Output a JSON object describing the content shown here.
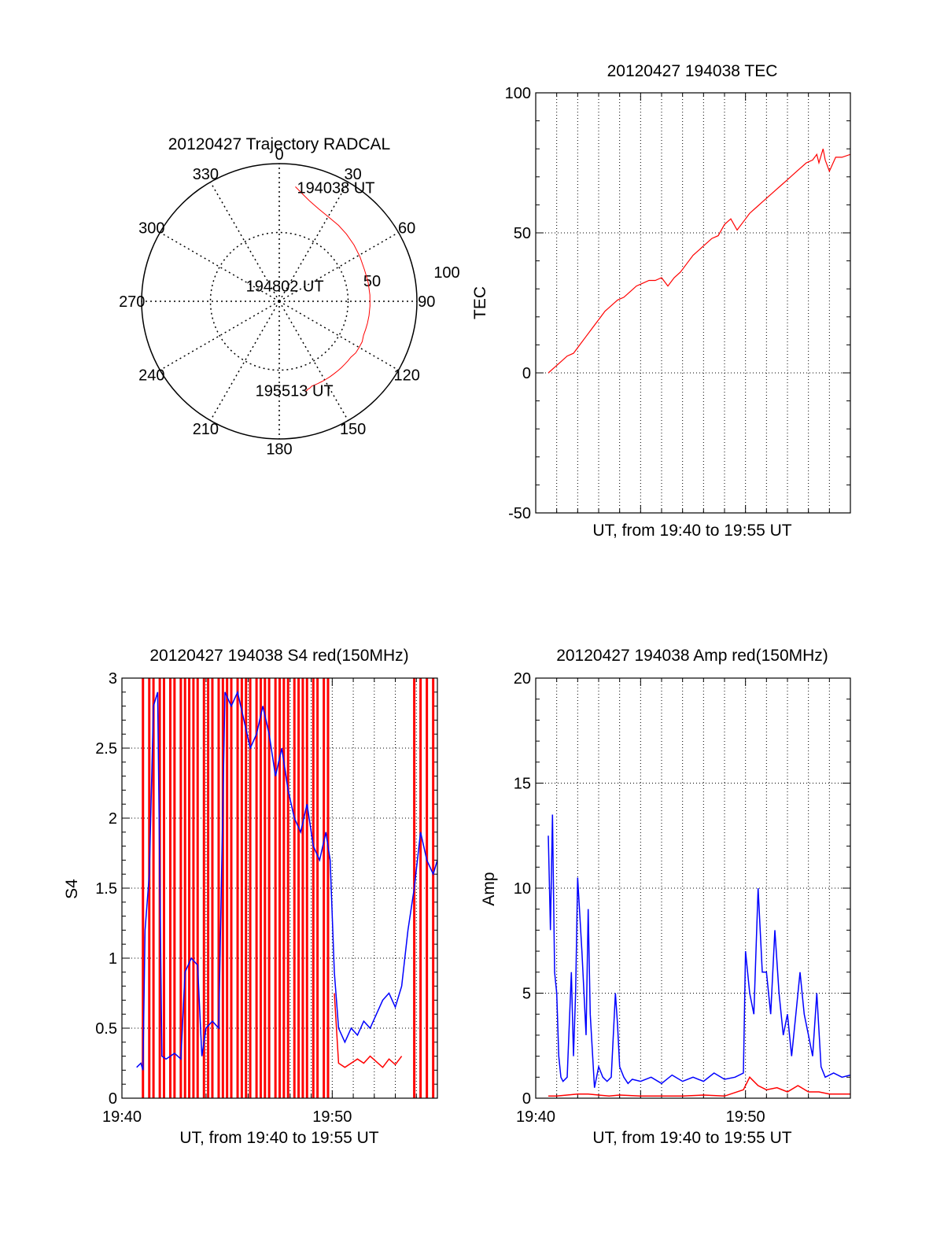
{
  "colors": {
    "red": "#ff0000",
    "blue": "#0000ff",
    "axis": "#000000",
    "grid": "#000000"
  },
  "chart_data": [
    {
      "id": "trajectory",
      "type": "polar",
      "title": "20120427 Trajectory RADCAL",
      "angle_labels": [
        "0",
        "30",
        "60",
        "90",
        "120",
        "150",
        "180",
        "210",
        "240",
        "270",
        "300",
        "330"
      ],
      "radial_labels": [
        "50",
        "100"
      ],
      "rmax": 100,
      "series": [
        {
          "color": "red",
          "points": [
            [
              8,
              84
            ],
            [
              12,
              80
            ],
            [
              17,
              76
            ],
            [
              23,
              73
            ],
            [
              30,
              71
            ],
            [
              38,
              70
            ],
            [
              45,
              69
            ],
            [
              53,
              68
            ],
            [
              61,
              67
            ],
            [
              70,
              66
            ],
            [
              78,
              66
            ],
            [
              86,
              66
            ],
            [
              93,
              66
            ],
            [
              99,
              66
            ],
            [
              104,
              66
            ],
            [
              108,
              66
            ],
            [
              112,
              66
            ],
            [
              116,
              67
            ],
            [
              120,
              67
            ],
            [
              124,
              67
            ],
            [
              128,
              66
            ],
            [
              131,
              66
            ],
            [
              134,
              66
            ],
            [
              137,
              66
            ],
            [
              140,
              66
            ],
            [
              143,
              66
            ],
            [
              146,
              66
            ],
            [
              149,
              66
            ],
            [
              152,
              66
            ],
            [
              155,
              66
            ],
            [
              157,
              66
            ],
            [
              159,
              66
            ],
            [
              161,
              67
            ],
            [
              162,
              67
            ],
            [
              163,
              68
            ],
            [
              164,
              68
            ]
          ]
        }
      ],
      "annotations": [
        {
          "text": "194038 UT",
          "az": 8,
          "r": 84
        },
        {
          "text": "194802 UT",
          "az": 295,
          "r": 28
        },
        {
          "text": "195513 UT",
          "az": 196,
          "r": 67
        }
      ]
    },
    {
      "id": "tec",
      "type": "line",
      "title": "20120427 194038 TEC",
      "xlabel": "UT, from 19:40 to 19:55 UT",
      "ylabel": "TEC",
      "xlim": [
        0,
        15
      ],
      "ylim": [
        -50,
        100
      ],
      "yticks": [
        -50,
        0,
        50,
        100
      ],
      "xticks": [],
      "series": [
        {
          "color": "red",
          "x": [
            0.6,
            0.9,
            1.2,
            1.5,
            1.8,
            2.1,
            2.4,
            2.7,
            3.0,
            3.3,
            3.6,
            3.9,
            4.2,
            4.5,
            4.8,
            5.1,
            5.4,
            5.7,
            6.0,
            6.3,
            6.6,
            6.9,
            7.2,
            7.5,
            7.8,
            8.1,
            8.4,
            8.7,
            9.0,
            9.3,
            9.6,
            9.9,
            10.2,
            10.5,
            10.8,
            11.1,
            11.4,
            11.7,
            12.0,
            12.3,
            12.6,
            12.9,
            13.2,
            13.4,
            13.5,
            13.7,
            13.8,
            14.0,
            14.3,
            14.6,
            15.0
          ],
          "y": [
            0,
            2,
            4,
            6,
            7,
            10,
            13,
            16,
            19,
            22,
            24,
            26,
            27,
            29,
            31,
            32,
            33,
            33,
            34,
            31,
            34,
            36,
            39,
            42,
            44,
            46,
            48,
            49,
            53,
            55,
            51,
            54,
            57,
            59,
            61,
            63,
            65,
            67,
            69,
            71,
            73,
            75,
            76,
            78,
            75,
            80,
            76,
            72,
            77,
            77,
            78
          ]
        }
      ]
    },
    {
      "id": "s4",
      "type": "line",
      "title": "20120427 194038 S4 red(150MHz)",
      "xlabel": "UT, from 19:40 to 19:55 UT",
      "ylabel": "S4",
      "xlim": [
        0,
        15
      ],
      "ylim": [
        0,
        3
      ],
      "yticks": [
        0,
        0.5,
        1,
        1.5,
        2,
        2.5,
        3
      ],
      "xticks": [
        {
          "value": 0,
          "label": "19:40"
        },
        {
          "value": 10,
          "label": "19:50"
        }
      ],
      "spike_x": [
        1.0,
        1.3,
        1.5,
        1.8,
        2.0,
        2.3,
        2.5,
        2.8,
        3.0,
        3.2,
        3.4,
        3.6,
        3.9,
        4.1,
        4.3,
        4.6,
        4.8,
        5.0,
        5.2,
        5.5,
        5.7,
        5.9,
        6.1,
        6.4,
        6.6,
        6.8,
        7.0,
        7.3,
        7.5,
        7.7,
        7.9,
        8.2,
        8.4,
        8.6,
        8.8,
        9.1,
        9.3,
        9.6,
        9.8,
        13.9,
        14.2,
        14.5,
        14.8
      ],
      "series": [
        {
          "color": "blue",
          "x": [
            0.7,
            0.9,
            1.0,
            1.1,
            1.3,
            1.5,
            1.7,
            1.9,
            2.1,
            2.3,
            2.5,
            2.8,
            3.0,
            3.3,
            3.6,
            3.8,
            4.0,
            4.3,
            4.6,
            4.9,
            5.2,
            5.5,
            5.8,
            6.1,
            6.4,
            6.7,
            7.0,
            7.3,
            7.6,
            7.9,
            8.2,
            8.5,
            8.8,
            9.1,
            9.4,
            9.7,
            9.9,
            10.1,
            10.3,
            10.6,
            10.9,
            11.2,
            11.5,
            11.8,
            12.1,
            12.4,
            12.7,
            13.0,
            13.3,
            13.6,
            13.9,
            14.2,
            14.5,
            14.8,
            15.0
          ],
          "y": [
            0.22,
            0.25,
            0.2,
            1.2,
            1.6,
            2.8,
            2.9,
            0.3,
            0.28,
            0.3,
            0.32,
            0.28,
            0.9,
            1.0,
            0.95,
            0.3,
            0.5,
            0.55,
            0.5,
            2.9,
            2.8,
            2.9,
            2.7,
            2.5,
            2.6,
            2.8,
            2.6,
            2.3,
            2.5,
            2.2,
            2.0,
            1.9,
            2.1,
            1.8,
            1.7,
            1.9,
            1.7,
            0.9,
            0.5,
            0.4,
            0.5,
            0.45,
            0.55,
            0.5,
            0.6,
            0.7,
            0.75,
            0.65,
            0.8,
            1.2,
            1.5,
            1.9,
            1.7,
            1.6,
            1.7
          ]
        },
        {
          "color": "red",
          "x": [
            10.1,
            10.3,
            10.6,
            10.9,
            11.2,
            11.5,
            11.8,
            12.1,
            12.4,
            12.7,
            13.0,
            13.3
          ],
          "y": [
            0.75,
            0.25,
            0.22,
            0.25,
            0.28,
            0.25,
            0.3,
            0.26,
            0.22,
            0.28,
            0.24,
            0.3
          ]
        }
      ]
    },
    {
      "id": "amp",
      "type": "line",
      "title": "20120427 194038 Amp red(150MHz)",
      "xlabel": "UT, from 19:40 to 19:55 UT",
      "ylabel": "Amp",
      "xlim": [
        0,
        15
      ],
      "ylim": [
        0,
        20
      ],
      "yticks": [
        0,
        5,
        10,
        15,
        20
      ],
      "xticks": [
        {
          "value": 0,
          "label": "19:40"
        },
        {
          "value": 10,
          "label": "19:50"
        }
      ],
      "series": [
        {
          "color": "blue",
          "x": [
            0.6,
            0.7,
            0.8,
            0.9,
            1.0,
            1.1,
            1.2,
            1.3,
            1.5,
            1.7,
            1.8,
            1.9,
            2.0,
            2.2,
            2.4,
            2.5,
            2.6,
            2.8,
            3.0,
            3.2,
            3.4,
            3.6,
            3.8,
            3.9,
            4.0,
            4.2,
            4.4,
            4.6,
            5.0,
            5.5,
            6.0,
            6.5,
            7.0,
            7.5,
            8.0,
            8.5,
            9.0,
            9.5,
            9.9,
            10.0,
            10.2,
            10.4,
            10.6,
            10.8,
            11.0,
            11.2,
            11.4,
            11.6,
            11.8,
            12.0,
            12.2,
            12.4,
            12.6,
            12.8,
            13.0,
            13.2,
            13.4,
            13.6,
            13.8,
            14.2,
            14.6,
            15.0
          ],
          "y": [
            12.5,
            8,
            13.5,
            6,
            5,
            2,
            1,
            0.8,
            1,
            6,
            2,
            5,
            10.5,
            7,
            3,
            9,
            4,
            0.5,
            1.5,
            1.0,
            0.8,
            1.0,
            5,
            3.5,
            1.5,
            1.0,
            0.7,
            0.9,
            0.8,
            1.0,
            0.7,
            1.1,
            0.8,
            1.0,
            0.8,
            1.2,
            0.9,
            1.0,
            1.2,
            7,
            5,
            4,
            10,
            6,
            6,
            4,
            8,
            5,
            3,
            4,
            2,
            4,
            6,
            4,
            3,
            2,
            5,
            1.5,
            1.0,
            1.2,
            1.0,
            1.1
          ]
        },
        {
          "color": "red",
          "x": [
            0.6,
            1.0,
            1.5,
            2.0,
            2.5,
            3.0,
            3.5,
            4.0,
            5.0,
            6.0,
            7.0,
            8.0,
            9.0,
            9.9,
            10.2,
            10.6,
            11.0,
            11.5,
            12.0,
            12.5,
            13.0,
            13.5,
            14.0,
            15.0
          ],
          "y": [
            0.1,
            0.1,
            0.15,
            0.2,
            0.2,
            0.15,
            0.1,
            0.15,
            0.1,
            0.1,
            0.1,
            0.15,
            0.1,
            0.4,
            1.0,
            0.6,
            0.4,
            0.5,
            0.3,
            0.6,
            0.3,
            0.3,
            0.2,
            0.2
          ]
        }
      ]
    }
  ]
}
